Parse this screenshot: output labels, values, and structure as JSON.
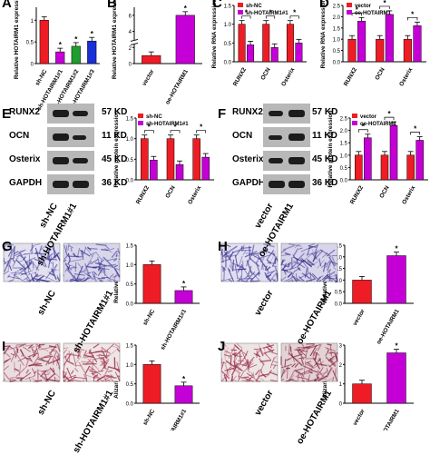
{
  "panels": {
    "A": "A",
    "B": "B",
    "C": "C",
    "D": "D",
    "E": "E",
    "F": "F",
    "G": "G",
    "H": "H",
    "I": "I",
    "J": "J"
  },
  "colors": {
    "red": "#ee1c24",
    "purple": "#c400d6",
    "green": "#1f9d2e",
    "blue": "#1a2fd6",
    "band": "#1c1c1c",
    "membrane": "#b8b8b8"
  },
  "blotE": {
    "proteins": [
      "RUNX2",
      "OCN",
      "Osterix",
      "GAPDH"
    ],
    "kd": [
      "57 KD",
      "11 KD",
      "45 KD",
      "36 KD"
    ],
    "lanes": [
      "sh-NC",
      "sh-HOTAIRM1#1"
    ]
  },
  "blotF": {
    "proteins": [
      "RUNX2",
      "OCN",
      "Osterix",
      "GAPDH"
    ],
    "kd": [
      "57 KD",
      "11 KD",
      "45 KD",
      "36 KD"
    ],
    "lanes": [
      "vector",
      "oe-HOTAIRM1"
    ]
  },
  "micro": {
    "G": [
      "sh-NC",
      "sh-HOTAIRM1#1"
    ],
    "H": [
      "vector",
      "oe-HOTAIRM1"
    ],
    "I": [
      "sh-NC",
      "sh-HOTAIRM1#1"
    ],
    "J": [
      "vector",
      "oe-HOTAIRM1"
    ]
  },
  "chart_data": [
    {
      "panel": "A",
      "type": "bar",
      "ylabel": "Relative HOTAIRM1 expression",
      "categories": [
        "sh-NC",
        "sh-HOTAIRM1#1",
        "sh-HOTAIRM1#2",
        "sh-HOTAIRM1#3"
      ],
      "values": [
        1.0,
        0.27,
        0.4,
        0.52
      ],
      "colors": [
        "#ee1c24",
        "#c400d6",
        "#1f9d2e",
        "#1a2fd6"
      ],
      "sig": [
        "",
        "*",
        "*",
        "*"
      ],
      "ylim": [
        0,
        1.3
      ]
    },
    {
      "panel": "B",
      "type": "bar",
      "ylabel": "Relative HOTAIRM1 expression",
      "categories": [
        "vector",
        "oe-HOTAIRM1"
      ],
      "values": [
        1.0,
        6.0
      ],
      "colors": [
        "#ee1c24",
        "#c400d6"
      ],
      "sig": [
        "",
        "*"
      ],
      "ylim": [
        0,
        7
      ],
      "broken_axis": true
    },
    {
      "panel": "C",
      "type": "bar",
      "ylabel": "Relative RNA expression",
      "categories": [
        "RUNX2",
        "OCN",
        "Osterix"
      ],
      "ticks": [
        "0.0",
        "0.5",
        "1.0",
        "1.5"
      ],
      "ylim": [
        0,
        1.5
      ],
      "series": [
        {
          "name": "sh-NC",
          "values": [
            1.0,
            1.0,
            1.0
          ],
          "color": "#ee1c24"
        },
        {
          "name": "sh-HOTAIRM1#1",
          "values": [
            0.45,
            0.38,
            0.5
          ],
          "color": "#c400d6"
        }
      ],
      "sig": "*"
    },
    {
      "panel": "D",
      "type": "bar",
      "ylabel": "Relative RNA expression",
      "categories": [
        "RUNX2",
        "OCN",
        "Osterix"
      ],
      "ticks": [
        "0.0",
        "0.5",
        "1.0",
        "1.5",
        "2.0",
        "2.5"
      ],
      "ylim": [
        0,
        2.5
      ],
      "series": [
        {
          "name": "vector",
          "values": [
            1.0,
            1.0,
            1.0
          ],
          "color": "#ee1c24"
        },
        {
          "name": "oe-HOTAIRM1",
          "values": [
            1.8,
            2.1,
            1.6
          ],
          "color": "#c400d6"
        }
      ],
      "sig": "*"
    },
    {
      "panel": "E",
      "type": "bar",
      "ylabel": "Relative protein expression",
      "categories": [
        "RUNX2",
        "OCN",
        "Osterix"
      ],
      "ticks": [
        "0.0",
        "0.5",
        "1.0",
        "1.5"
      ],
      "ylim": [
        0,
        1.5
      ],
      "series": [
        {
          "name": "sh-NC",
          "values": [
            1.0,
            1.0,
            1.0
          ],
          "color": "#ee1c24"
        },
        {
          "name": "sh-HOTAIRM1#1",
          "values": [
            0.48,
            0.37,
            0.55
          ],
          "color": "#c400d6"
        }
      ],
      "sig": "*"
    },
    {
      "panel": "F",
      "type": "bar",
      "ylabel": "Relative protein expression",
      "categories": [
        "RUNX2",
        "OCN",
        "Osterix"
      ],
      "ticks": [
        "0.0",
        "0.5",
        "1.0",
        "1.5",
        "2.0",
        "2.5"
      ],
      "ylim": [
        0,
        2.5
      ],
      "series": [
        {
          "name": "vector",
          "values": [
            1.0,
            1.0,
            1.0
          ],
          "color": "#ee1c24"
        },
        {
          "name": "oe-HOTAIRM1",
          "values": [
            1.7,
            2.2,
            1.6
          ],
          "color": "#c400d6"
        }
      ],
      "sig": "*"
    },
    {
      "panel": "G",
      "type": "bar",
      "ylabel": "Relative ALP activity",
      "categories": [
        "sh-NC",
        "sh-HOTAIRM1#1"
      ],
      "ticks": [
        "0.0",
        "0.5",
        "1.0",
        "1.5"
      ],
      "ylim": [
        0,
        1.5
      ],
      "values": [
        1.0,
        0.33
      ],
      "colors": [
        "#ee1c24",
        "#c400d6"
      ],
      "sig": [
        "",
        "*"
      ]
    },
    {
      "panel": "H",
      "type": "bar",
      "ylabel": "Relative ALP activity",
      "categories": [
        "vector",
        "oe-HOTAIRM1"
      ],
      "ticks": [
        "0.0",
        "0.5",
        "1.0",
        "1.5",
        "2.0",
        "2.5"
      ],
      "ylim": [
        0,
        2.5
      ],
      "values": [
        1.0,
        2.05
      ],
      "colors": [
        "#ee1c24",
        "#c400d6"
      ],
      "sig": [
        "",
        "*"
      ]
    },
    {
      "panel": "I",
      "type": "bar",
      "ylabel": "Alizarin red-sacle",
      "categories": [
        "sh-NC",
        "sh-HOTAIRM1#1"
      ],
      "ticks": [
        "0.0",
        "0.5",
        "1.0",
        "1.5"
      ],
      "ylim": [
        0,
        1.5
      ],
      "values": [
        1.0,
        0.45
      ],
      "colors": [
        "#ee1c24",
        "#c400d6"
      ],
      "sig": [
        "",
        "*"
      ]
    },
    {
      "panel": "J",
      "type": "bar",
      "ylabel": "Alizarin red-sacle",
      "categories": [
        "vector",
        "oe-HOTAIRM1"
      ],
      "ticks": [
        "0",
        "1",
        "2",
        "3"
      ],
      "ylim": [
        0,
        3
      ],
      "values": [
        1.0,
        2.6
      ],
      "colors": [
        "#ee1c24",
        "#c400d6"
      ],
      "sig": [
        "",
        "*"
      ]
    }
  ]
}
